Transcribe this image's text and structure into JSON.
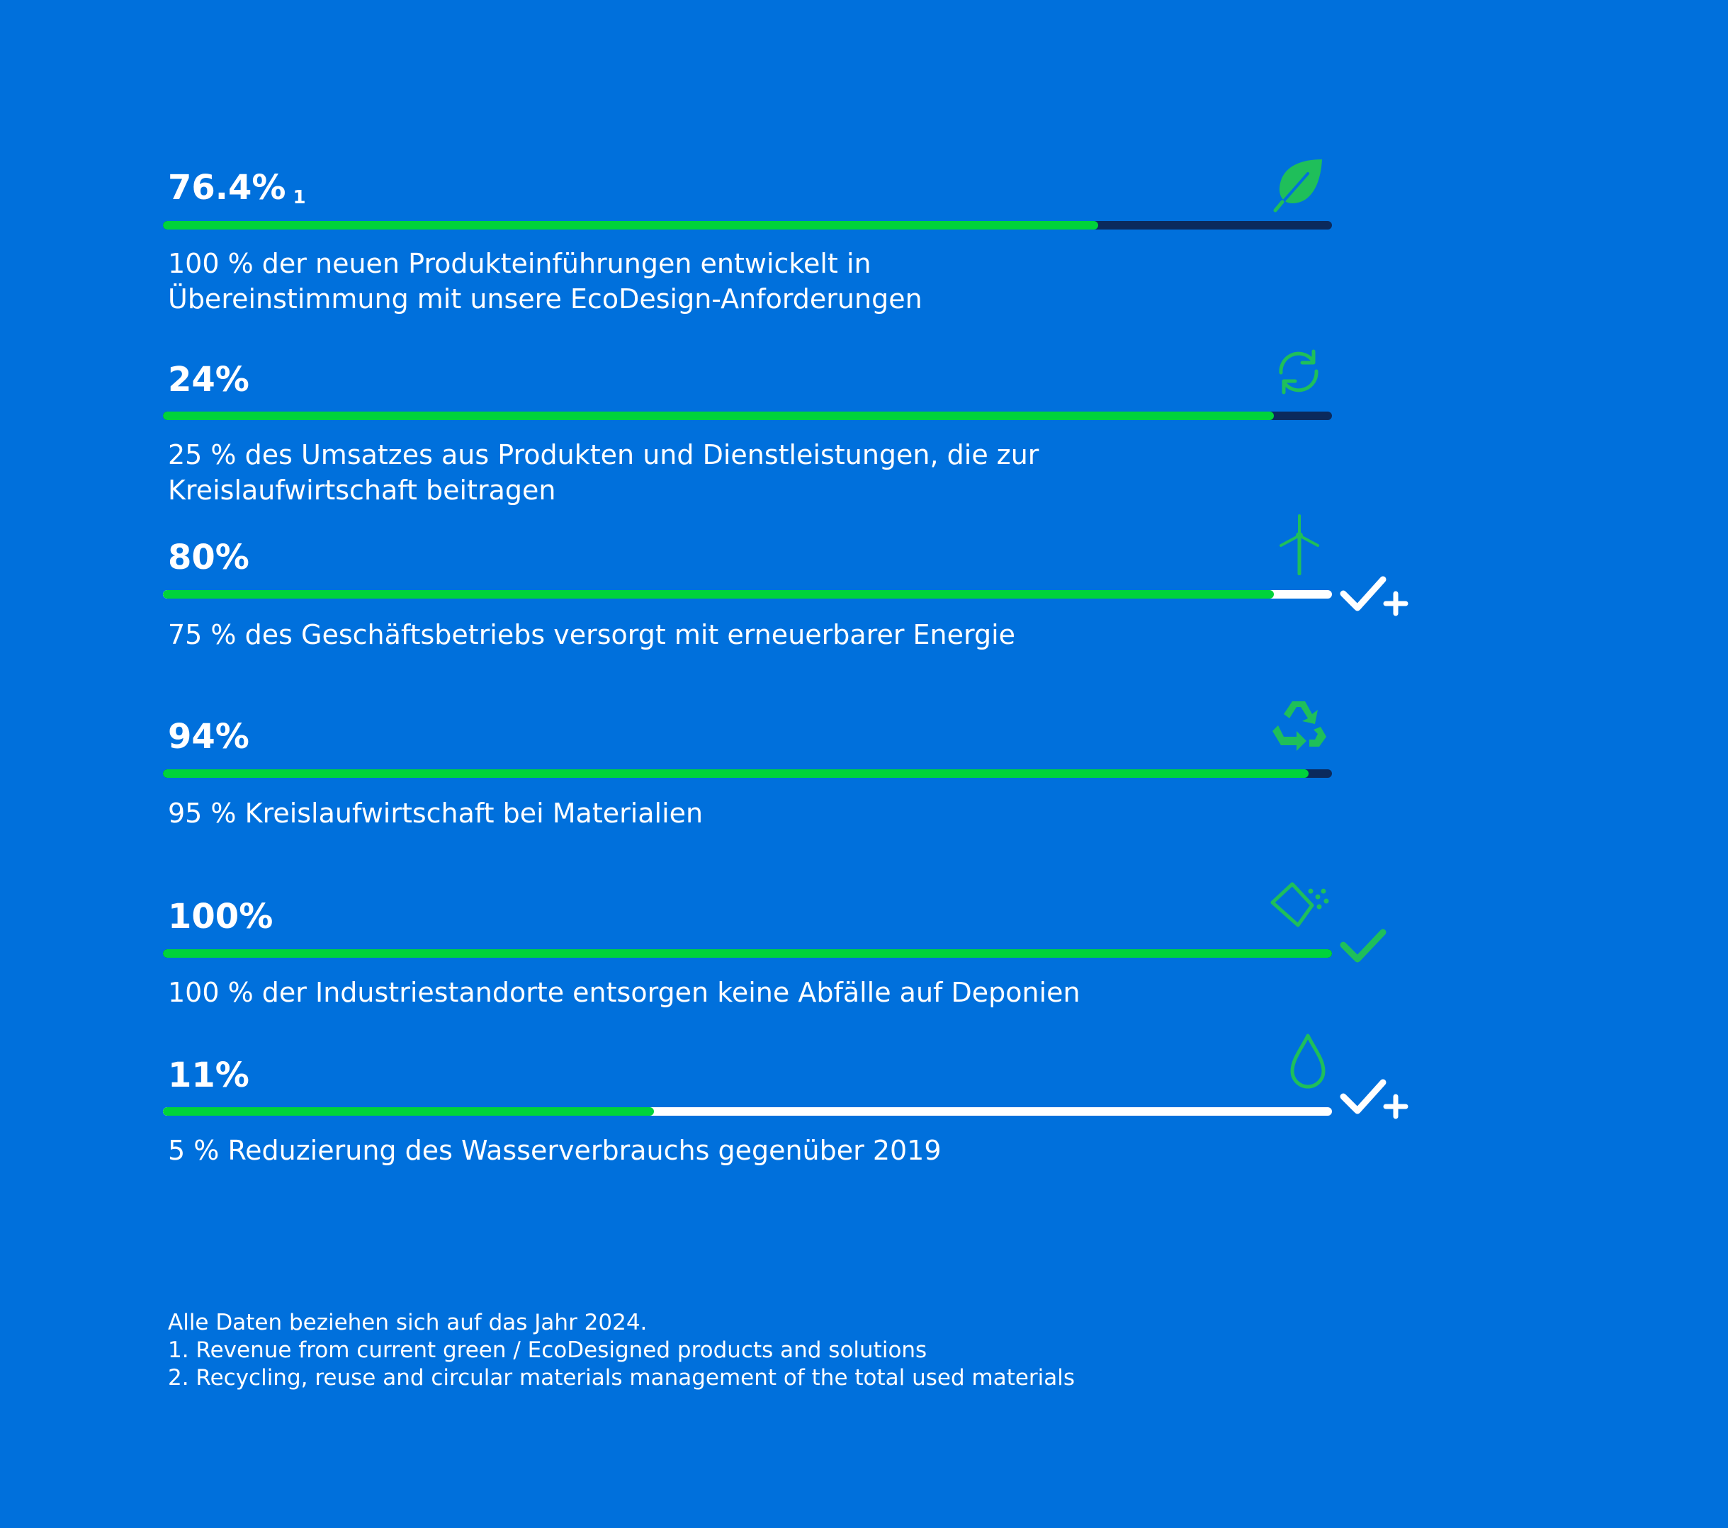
{
  "kpis": [
    {
      "value": "76.4%",
      "footnote_ref": "1",
      "progress": 0.8,
      "track": "dark",
      "description": "100 % der neuen Produkteinführungen entwickelt in\nÜbereinstimmung mit unsere EcoDesign-Anforderungen",
      "icon": "leaf-icon",
      "status": "none"
    },
    {
      "value": "24%",
      "footnote_ref": "",
      "progress": 0.95,
      "track": "dark",
      "description": "25 % des Umsatzes aus Produkten und Dienstleistungen, die zur\nKreislaufwirtschaft beitragen",
      "icon": "refresh-icon",
      "status": "none"
    },
    {
      "value": "80%",
      "footnote_ref": "",
      "progress": 0.95,
      "track": "light",
      "description": "75 % des Geschäftsbetriebs versorgt mit erneuerbarer Energie",
      "icon": "wind-turbine-icon",
      "status": "exceeded"
    },
    {
      "value": "94%",
      "footnote_ref": "",
      "progress": 0.98,
      "track": "dark",
      "description": "95 % Kreislaufwirtschaft bei Materialien",
      "icon": "recycle-icon",
      "status": "none"
    },
    {
      "value": "100%",
      "footnote_ref": "",
      "progress": 1.0,
      "track": "dark",
      "description": "100 % der Industriestandorte entsorgen keine Abfälle auf Deponien",
      "icon": "waste-bin-icon",
      "status": "achieved"
    },
    {
      "value": "11%",
      "footnote_ref": "",
      "progress": 0.42,
      "track": "light",
      "description": "5 % Reduzierung des Wasserverbrauchs gegenüber 2019",
      "icon": "water-drop-icon",
      "status": "exceeded"
    }
  ],
  "footnotes": {
    "line1": "Alle Daten beziehen sich auf das Jahr 2024.",
    "line2": "1. Revenue from current green / EcoDesigned products and solutions",
    "line3": "2. Recycling, reuse and circular materials management of the total used materials"
  },
  "colors": {
    "background": "#0070dc",
    "progress_fill": "#00d33a",
    "track_dark": "#0b2a5c",
    "track_light": "#ffffff",
    "icon_green": "#1fbf5a",
    "text": "#ffffff"
  }
}
